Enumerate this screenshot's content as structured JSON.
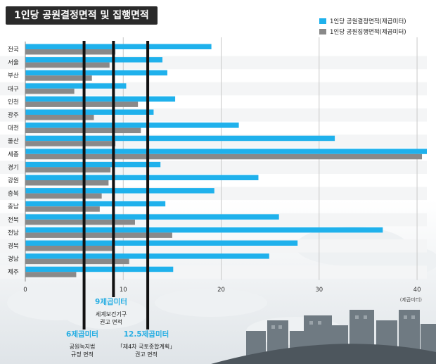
{
  "title": "1인당 공원결정면적 및 집행면적",
  "colors": {
    "decided": "#1fb1ec",
    "executed": "#898989",
    "ref_line": "#111111",
    "accent_text": "#27aee3"
  },
  "chart_data": {
    "type": "bar",
    "orientation": "horizontal",
    "categories": [
      "전국",
      "서울",
      "부산",
      "대구",
      "인천",
      "광주",
      "대전",
      "울산",
      "세종",
      "경기",
      "강원",
      "충북",
      "충남",
      "전북",
      "전남",
      "경북",
      "경남",
      "제주"
    ],
    "series": [
      {
        "name": "1인당 공원결정면적(제곱미터)",
        "values": [
          19.0,
          14.0,
          14.5,
          10.3,
          15.3,
          13.1,
          21.8,
          31.6,
          41.0,
          13.8,
          23.8,
          19.3,
          14.3,
          25.9,
          36.5,
          27.8,
          24.9,
          15.1
        ]
      },
      {
        "name": "1인당 공원집행면적(제곱미터)",
        "values": [
          9.2,
          8.6,
          6.8,
          5.0,
          11.5,
          7.0,
          11.8,
          9.2,
          40.5,
          8.7,
          8.5,
          7.8,
          7.6,
          11.2,
          15.0,
          8.9,
          10.6,
          5.2
        ]
      }
    ],
    "xlim": [
      0,
      41
    ],
    "x_ticks": [
      "0",
      "10",
      "20",
      "30",
      "40"
    ],
    "x_unit": "(제곱미터)",
    "grid": true,
    "legend": "top-right",
    "reference_lines": [
      {
        "value": 6,
        "label": "6제곱미터",
        "desc1": "공원녹지법",
        "desc2": "규정 면적"
      },
      {
        "value": 9,
        "label": "9제곱미터",
        "desc1": "세계보건기구",
        "desc2": "권고 면적"
      },
      {
        "value": 12.5,
        "label": "12.5제곱미터",
        "desc1": "「제4차 국토종합계획」",
        "desc2": "권고 면적"
      }
    ]
  }
}
